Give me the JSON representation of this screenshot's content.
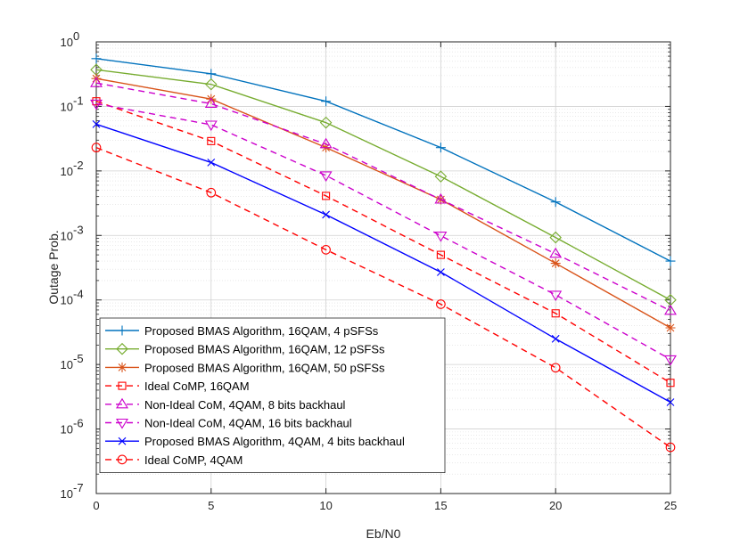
{
  "chart_data": {
    "type": "line",
    "yscale": "log",
    "title": "",
    "xlabel": "Eb/N0",
    "ylabel": "Outage Prob.",
    "xlim": [
      0,
      25
    ],
    "ylim_exponent": [
      -7,
      0
    ],
    "x_ticks": [
      "0",
      "5",
      "10",
      "15",
      "20",
      "25"
    ],
    "y_ticks": [
      {
        "base": "10",
        "exp": "0"
      },
      {
        "base": "10",
        "exp": "-1"
      },
      {
        "base": "10",
        "exp": "-2"
      },
      {
        "base": "10",
        "exp": "-3"
      },
      {
        "base": "10",
        "exp": "-4"
      },
      {
        "base": "10",
        "exp": "-5"
      },
      {
        "base": "10",
        "exp": "-6"
      },
      {
        "base": "10",
        "exp": "-7"
      }
    ],
    "grid": true,
    "legend_position": "bottom-left",
    "x": [
      0,
      5,
      10,
      15,
      20,
      25
    ],
    "series": [
      {
        "name": "Proposed BMAS Algorithm, 16QAM, 4 pSFSs",
        "color": "#0072BD",
        "marker": "plus",
        "dash": false,
        "values": [
          0.55,
          0.32,
          0.12,
          0.023,
          0.0033,
          0.0004
        ]
      },
      {
        "name": "Proposed BMAS Algorithm, 16QAM, 12 pSFSs",
        "color": "#77AC30",
        "marker": "diamond",
        "dash": false,
        "values": [
          0.37,
          0.22,
          0.056,
          0.0082,
          0.00093,
          0.0001
        ]
      },
      {
        "name": "Proposed BMAS Algorithm, 16QAM, 50 pSFSs",
        "color": "#D95319",
        "marker": "asterisk",
        "dash": false,
        "values": [
          0.27,
          0.13,
          0.023,
          0.0036,
          0.00037,
          3.7e-05
        ]
      },
      {
        "name": "Ideal CoMP, 16QAM",
        "color": "#FF0000",
        "marker": "square",
        "dash": true,
        "values": [
          0.12,
          0.029,
          0.0041,
          0.0005,
          6.2e-05,
          5.2e-06
        ]
      },
      {
        "name": "Non-Ideal CoM, 4QAM, 8 bits backhaul",
        "color": "#CC00CC",
        "marker": "triangle-up",
        "dash": true,
        "values": [
          0.23,
          0.11,
          0.026,
          0.0036,
          0.00052,
          6.8e-05
        ]
      },
      {
        "name": "Non-Ideal CoM, 4QAM, 16 bits backhaul",
        "color": "#CC00CC",
        "marker": "triangle-down",
        "dash": true,
        "values": [
          0.11,
          0.052,
          0.0085,
          0.00099,
          0.00012,
          1.2e-05
        ]
      },
      {
        "name": "Proposed BMAS Algorithm, 4QAM, 4 bits backhaul",
        "color": "#0000FF",
        "marker": "x",
        "dash": false,
        "values": [
          0.053,
          0.0135,
          0.0021,
          0.00027,
          2.5e-05,
          2.6e-06
        ]
      },
      {
        "name": "Ideal CoMP, 4QAM",
        "color": "#FF0000",
        "marker": "circle",
        "dash": true,
        "values": [
          0.023,
          0.0046,
          0.0006,
          8.6e-05,
          8.9e-06,
          5.2e-07
        ]
      }
    ]
  }
}
